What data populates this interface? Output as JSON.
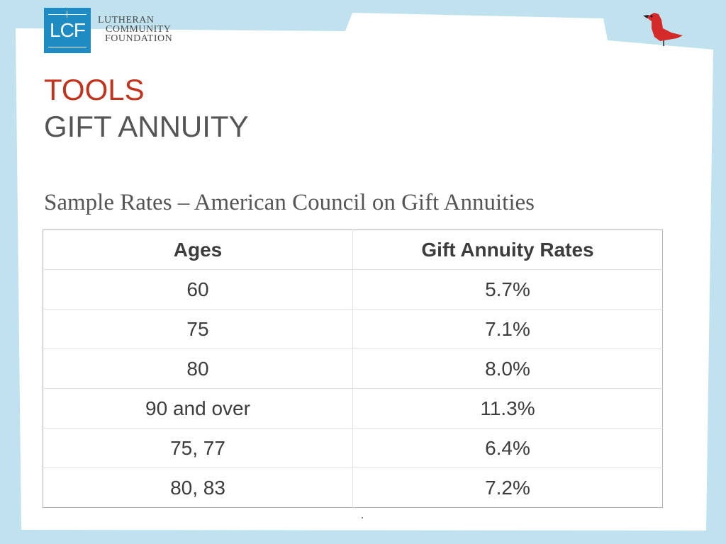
{
  "logo": {
    "letters": "LCF",
    "name_lines": [
      "LUTHERAN",
      "COMMUNITY",
      "FOUNDATION"
    ]
  },
  "title": {
    "line1": "TOOLS",
    "line2": "GIFT ANNUITY"
  },
  "subtitle": "Sample Rates – American Council on Gift Annuities",
  "table": {
    "headers": [
      "Ages",
      "Gift Annuity Rates"
    ],
    "rows": [
      [
        "60",
        "5.7%"
      ],
      [
        "75",
        "7.1%"
      ],
      [
        "80",
        "8.0%"
      ],
      [
        "90 and over",
        "11.3%"
      ],
      [
        "75, 77",
        "6.4%"
      ],
      [
        "80, 83",
        "7.2%"
      ]
    ]
  },
  "colors": {
    "background": "#bfe2ee",
    "accent_red": "#c3331c",
    "logo_blue": "#1f8bc3",
    "text_gray": "#555555"
  },
  "icons": {
    "logo": "lcf-logo-icon",
    "bird": "red-bird-icon"
  }
}
